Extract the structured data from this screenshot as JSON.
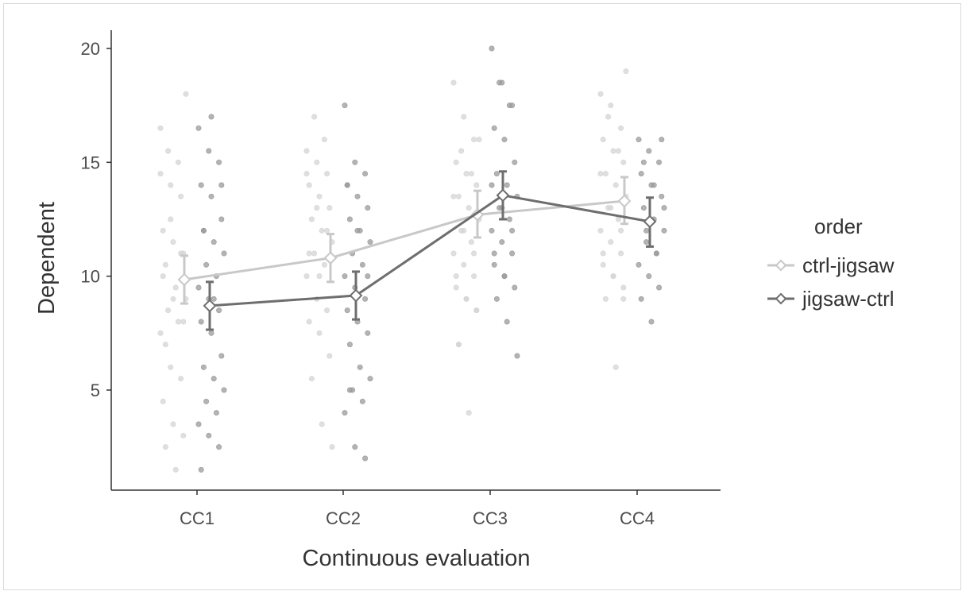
{
  "chart_data": {
    "type": "line",
    "title": "",
    "xlabel": "Continuous evaluation",
    "ylabel": "Dependent",
    "categories": [
      "CC1",
      "CC2",
      "CC3",
      "CC4"
    ],
    "ylim": [
      0.5,
      21
    ],
    "yticks": [
      5,
      10,
      15,
      20
    ],
    "grid": false,
    "legend": {
      "title": "order",
      "position": "right"
    },
    "series": [
      {
        "name": "ctrl-jigsaw",
        "color": "#c8c8c8",
        "values": [
          9.85,
          10.8,
          12.7,
          13.3
        ],
        "err_low": [
          8.8,
          9.75,
          11.7,
          12.3
        ],
        "err_high": [
          10.9,
          11.85,
          13.75,
          14.35
        ],
        "points": [
          [
            16.5,
            14,
            13.5,
            12,
            11.5,
            11,
            10.5,
            9.5,
            9,
            8.5,
            8,
            7.5,
            6,
            5.5,
            4.5,
            3.5,
            3,
            2.5,
            1.5,
            18,
            15.5,
            15,
            14.5,
            12.5,
            11,
            10,
            9,
            8,
            7
          ],
          [
            15.5,
            15,
            14.5,
            14,
            13.5,
            13,
            12.5,
            12,
            11.5,
            11,
            10.5,
            10,
            9,
            8.5,
            8,
            7.5,
            6.5,
            5.5,
            3.5,
            2.5,
            17,
            16,
            14.5,
            13,
            12,
            11,
            10
          ],
          [
            18.5,
            17,
            16,
            15,
            14.5,
            14,
            13.5,
            13,
            12.5,
            12,
            11.5,
            11,
            10.5,
            10,
            9.5,
            9,
            8.5,
            7,
            4,
            16,
            15.5,
            14.5,
            13.5,
            12,
            11,
            10,
            9,
            8.5,
            7
          ],
          [
            18,
            17.5,
            16.5,
            16,
            15.5,
            15,
            14.5,
            14,
            13.5,
            13,
            12.5,
            12,
            11.5,
            11,
            10.5,
            10,
            9.5,
            9,
            6,
            19,
            17,
            15.5,
            14.5,
            13,
            12,
            11,
            10,
            9
          ]
        ]
      },
      {
        "name": "jigsaw-ctrl",
        "color": "#6e6e6e",
        "values": [
          8.7,
          9.15,
          13.55,
          12.4
        ],
        "err_low": [
          7.65,
          8.1,
          12.5,
          11.3
        ],
        "err_high": [
          9.75,
          10.2,
          14.6,
          13.45
        ],
        "points": [
          [
            16.5,
            15.5,
            15,
            14,
            13.5,
            12.5,
            12,
            11.5,
            11,
            10.5,
            10,
            9.5,
            9,
            8.5,
            8,
            7.5,
            6.5,
            6,
            5.5,
            5,
            4.5,
            4,
            3.5,
            3,
            2.5,
            1.5,
            17,
            14,
            12,
            9
          ],
          [
            17.5,
            15,
            14.5,
            14,
            13.5,
            13,
            12.5,
            12,
            11.5,
            11,
            10.5,
            10,
            9.5,
            9,
            8.5,
            8,
            7.5,
            7,
            6,
            5.5,
            5,
            4.5,
            4,
            2.5,
            2,
            14,
            12,
            10,
            5
          ],
          [
            20,
            18.5,
            17.5,
            16.5,
            16,
            15,
            14.5,
            14,
            13.5,
            13,
            12.5,
            12,
            11.5,
            11,
            10.5,
            10,
            9.5,
            9,
            8,
            6.5,
            18.5,
            17.5,
            14,
            13,
            12,
            11,
            10
          ],
          [
            16,
            15.5,
            15,
            14.5,
            14,
            13.5,
            13,
            12.5,
            12,
            11.5,
            11,
            10.5,
            10,
            9.5,
            9,
            8,
            16,
            15,
            14,
            13,
            12,
            11
          ]
        ]
      }
    ]
  }
}
